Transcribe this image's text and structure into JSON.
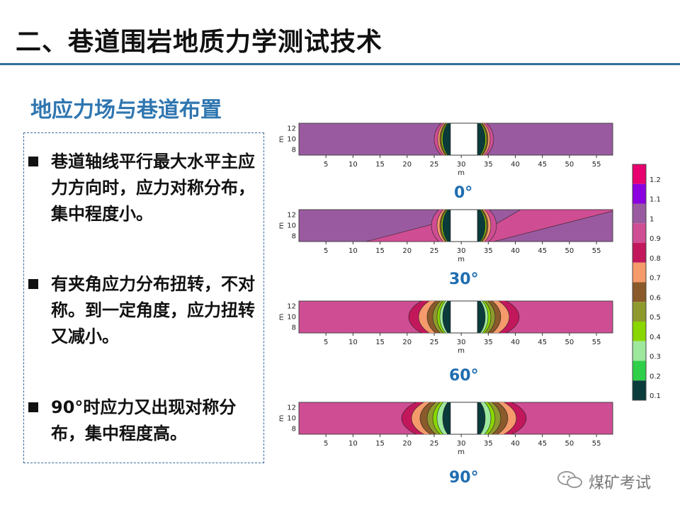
{
  "header": {
    "title": "二、巷道围岩地质力学测试技术"
  },
  "section": {
    "subtitle": "地应力场与巷道布置"
  },
  "bullets": [
    "巷道轴线平行最大水平主应力方向时，应力对称分布，集中程度小。",
    "有夹角应力分布扭转，不对称。到一定角度，应力扭转又减小。",
    "90°时应力又出现对称分布，集中程度高。"
  ],
  "plots": {
    "xlabel": "m",
    "ylabel": "m",
    "x_ticks": [
      "5",
      "10",
      "15",
      "20",
      "25",
      "30",
      "35",
      "40",
      "45",
      "50",
      "55"
    ],
    "y_ticks": [
      "12",
      "10",
      "8"
    ],
    "angles": [
      "0°",
      "30°",
      "60°",
      "90°"
    ]
  },
  "colorbar": {
    "levels": [
      "1.2",
      "1.1",
      "1",
      "0.9",
      "0.8",
      "0.7",
      "0.6",
      "0.5",
      "0.4",
      "0.3",
      "0.2",
      "0.1"
    ],
    "colors": [
      "#e8006e",
      "#8b00e0",
      "#9a5aa0",
      "#cf4d93",
      "#c2185b",
      "#f59a6b",
      "#8a5a2b",
      "#8f9a2e",
      "#8ad600",
      "#9ee89e",
      "#2fcf4a",
      "#0b3b3b"
    ]
  },
  "watermark": {
    "text": "煤矿考试",
    "icon": "wechat-icon"
  }
}
